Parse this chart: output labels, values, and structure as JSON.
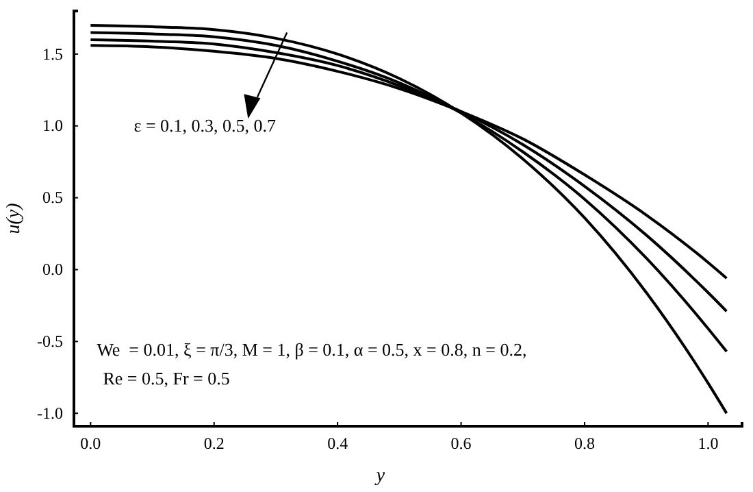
{
  "chart_data": {
    "type": "line",
    "xlabel": "y",
    "ylabel": "u(y)",
    "x": [
      0,
      0.1,
      0.2,
      0.3,
      0.4,
      0.5,
      0.6,
      0.7,
      0.8,
      0.9,
      1.0,
      1.03
    ],
    "series": [
      {
        "color": "#000000",
        "values": [
          1.7,
          1.69,
          1.67,
          1.61,
          1.5,
          1.33,
          1.09,
          0.77,
          0.36,
          -0.16,
          -0.79,
          -1.0
        ]
      },
      {
        "color": "#000000",
        "values": [
          1.65,
          1.64,
          1.62,
          1.56,
          1.45,
          1.3,
          1.09,
          0.82,
          0.49,
          0.08,
          -0.41,
          -0.57
        ]
      },
      {
        "color": "#000000",
        "values": [
          1.6,
          1.59,
          1.57,
          1.51,
          1.42,
          1.28,
          1.1,
          0.87,
          0.58,
          0.24,
          -0.16,
          -0.29
        ]
      },
      {
        "color": "#000000",
        "values": [
          1.56,
          1.55,
          1.52,
          1.47,
          1.38,
          1.26,
          1.1,
          0.91,
          0.66,
          0.38,
          0.05,
          -0.06
        ]
      }
    ],
    "xlim": [
      -0.027,
      1.055
    ],
    "ylim": [
      -1.09,
      1.8
    ],
    "xticks": [
      {
        "value": 0,
        "label": "0.0"
      },
      0.2,
      0.4,
      0.6,
      0.8,
      {
        "value": 1,
        "label": "1.0"
      }
    ],
    "yticks": [
      {
        "value": -1,
        "label": "-1.0"
      },
      -0.5,
      {
        "value": 0,
        "label": "0.0"
      },
      0.5,
      {
        "value": 1,
        "label": "1.0"
      },
      1.5
    ],
    "annotations": [
      "ε = 0.1, 0.3, 0.5, 0.7",
      "We  = 0.01, ξ = π/3, M = 1, β = 0.1, α = 0.5, x = 0.8, n = 0.2,",
      "Re = 0.5, Fr = 0.5"
    ],
    "grid": false,
    "marker": "none",
    "line_style": "solid"
  }
}
